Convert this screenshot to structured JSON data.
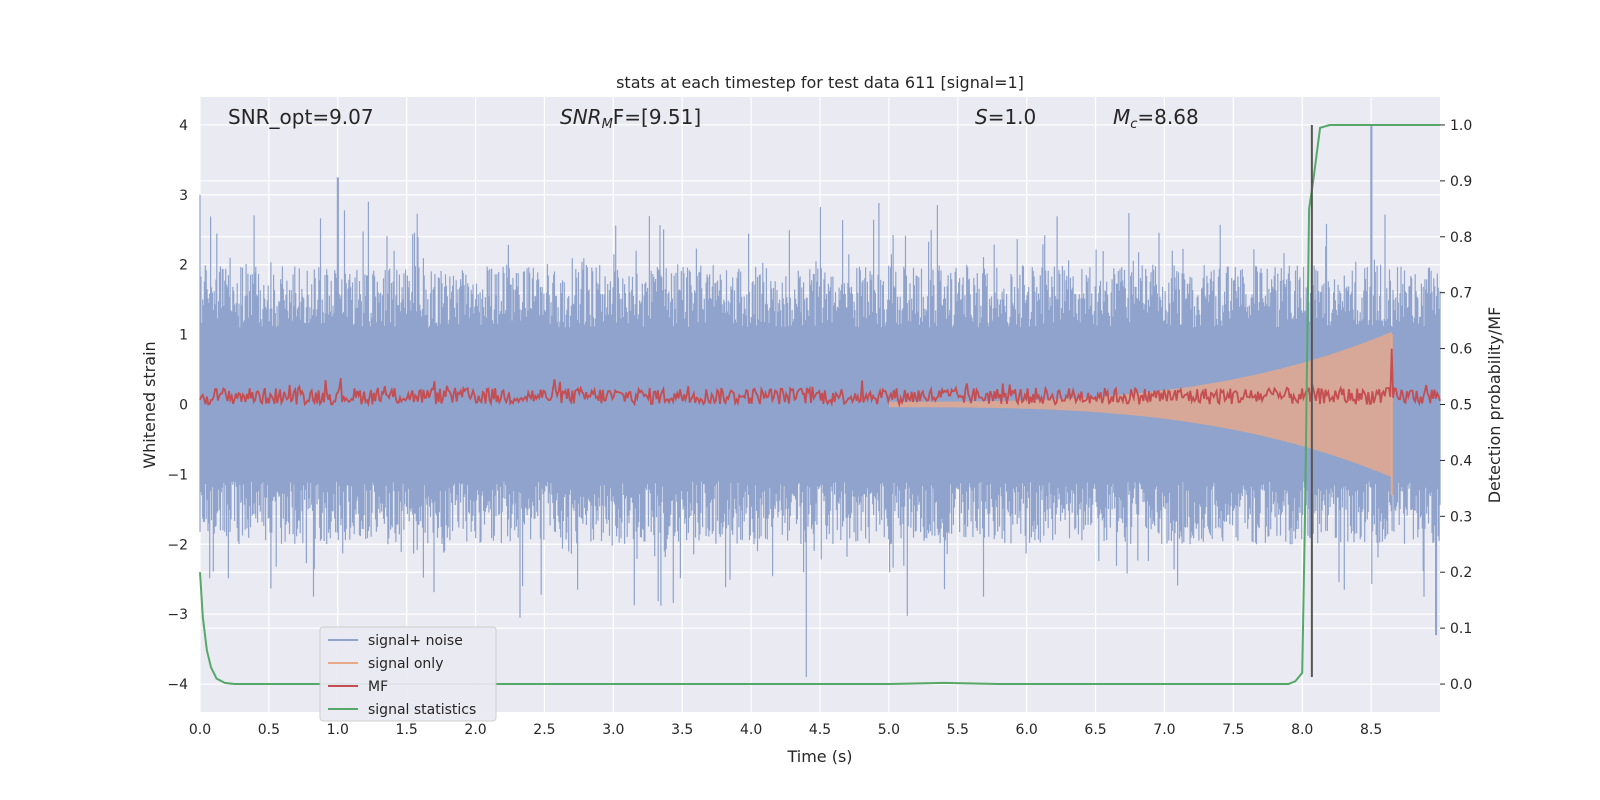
{
  "chart_data": {
    "type": "line",
    "title": "stats at each timestep for test data 611 [signal=1]",
    "xlabel": "Time (s)",
    "ylabel": "Whitened strain",
    "ylabel_right": "Detection probability/MF",
    "xlim": [
      0,
      9.0
    ],
    "ylim": [
      -4.4,
      4.4
    ],
    "ylim_right": [
      -0.05,
      1.05
    ],
    "xticks": [
      "0.0",
      "0.5",
      "1.0",
      "1.5",
      "2.0",
      "2.5",
      "3.0",
      "3.5",
      "4.0",
      "4.5",
      "5.0",
      "5.5",
      "6.0",
      "6.5",
      "7.0",
      "7.5",
      "8.0",
      "8.5"
    ],
    "xtick_values": [
      0,
      0.5,
      1,
      1.5,
      2,
      2.5,
      3,
      3.5,
      4,
      4.5,
      5,
      5.5,
      6,
      6.5,
      7,
      7.5,
      8,
      8.5
    ],
    "yticks_left": [
      "4",
      "3",
      "2",
      "1",
      "0",
      "−1",
      "−2",
      "−3",
      "−4"
    ],
    "ytick_left_values": [
      4,
      3,
      2,
      1,
      0,
      -1,
      -2,
      -3,
      -4
    ],
    "yticks_right": [
      "1.0",
      "0.9",
      "0.8",
      "0.7",
      "0.6",
      "0.5",
      "0.4",
      "0.3",
      "0.2",
      "0.1",
      "0.0"
    ],
    "ytick_right_values": [
      1.0,
      0.9,
      0.8,
      0.7,
      0.6,
      0.5,
      0.4,
      0.3,
      0.2,
      0.1,
      0.0
    ],
    "annotations": {
      "snr_opt": "SNR_opt=9.07",
      "snr_mf_main": "SNR",
      "snr_mf_sub": "M",
      "snr_mf_tail": "F=[9.51]",
      "s_label": "S",
      "s_tail": "=1.0",
      "mc_label": "M",
      "mc_sub": "c",
      "mc_tail": "=8.68"
    },
    "legend": {
      "placement": "lower-left",
      "entries": [
        {
          "name": "signal+ noise",
          "color": "#8fa3cc"
        },
        {
          "name": "signal only",
          "color": "#e8a98a"
        },
        {
          "name": "MF",
          "color": "#c44e52"
        },
        {
          "name": "signal statistics",
          "color": "#55a868"
        }
      ]
    },
    "series": [
      {
        "name": "signal+ noise",
        "axis": "left",
        "color": "#8fa3cc",
        "style": "noise-band",
        "approx_amplitude": 1.6,
        "extreme_spikes": [
          [
            0.0,
            3.0
          ],
          [
            1.0,
            3.25
          ],
          [
            4.4,
            -3.9
          ],
          [
            8.5,
            4.0
          ],
          [
            8.97,
            -3.3
          ]
        ]
      },
      {
        "name": "signal only",
        "axis": "left",
        "color": "#e8a98a",
        "style": "chirp",
        "x_start": 5.0,
        "x_peak": 8.65,
        "peak_amplitude": 1.0
      },
      {
        "name": "MF",
        "axis": "right",
        "color": "#c44e52",
        "baseline": 0.515,
        "peak": [
          8.65,
          0.6
        ]
      },
      {
        "name": "signal statistics",
        "axis": "right",
        "color": "#55a868",
        "x": [
          0.0,
          0.02,
          0.05,
          0.08,
          0.12,
          0.18,
          0.25,
          0.5,
          1.0,
          2.0,
          3.0,
          4.0,
          5.0,
          5.4,
          5.8,
          6.0,
          7.0,
          7.9,
          7.95,
          8.0,
          8.02,
          8.05,
          8.08,
          8.13,
          8.2,
          8.5,
          9.0
        ],
        "y": [
          0.2,
          0.12,
          0.06,
          0.03,
          0.01,
          0.002,
          0.0,
          0.0,
          0.0,
          0.0,
          0.0,
          0.0,
          0.0,
          0.002,
          0.0,
          0.0,
          0.0,
          0.0,
          0.005,
          0.02,
          0.3,
          0.85,
          0.9,
          0.995,
          1.0,
          1.0,
          1.0
        ]
      }
    ],
    "vertical_line": {
      "x": 8.07,
      "y_top": 4.0,
      "y_bottom": -3.9,
      "color": "#555555"
    }
  }
}
